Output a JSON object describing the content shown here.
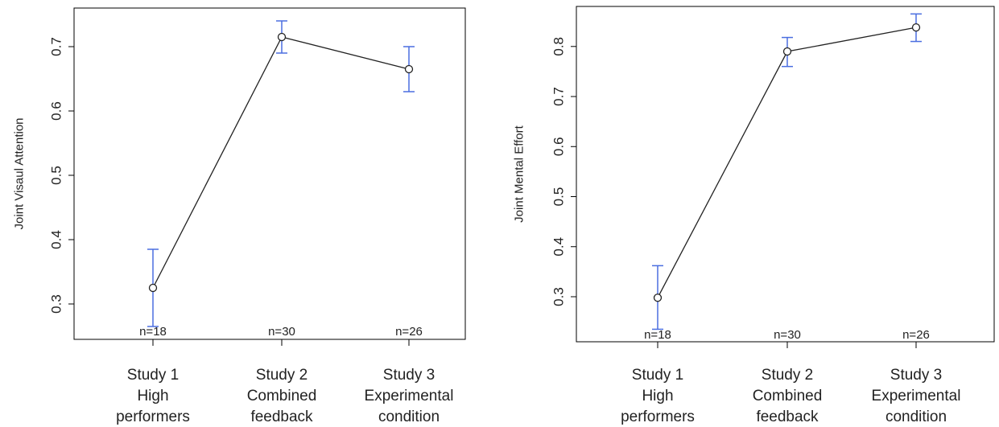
{
  "colors": {
    "line": "#222222",
    "errorbar": "#4a6ee0",
    "axis": "#000000"
  },
  "chart_data": [
    {
      "type": "line",
      "ylabel": "Joint Visaul Attention",
      "categories": [
        [
          "Study 1",
          "High",
          "performers"
        ],
        [
          "Study 2",
          "Combined",
          "feedback"
        ],
        [
          "Study 3",
          "Experimental",
          "condition"
        ]
      ],
      "values": [
        0.325,
        0.715,
        0.665
      ],
      "error_low": [
        0.265,
        0.69,
        0.63
      ],
      "error_high": [
        0.385,
        0.74,
        0.7
      ],
      "n_labels": [
        "n=18",
        "n=30",
        "n=26"
      ],
      "ylim": [
        0.245,
        0.76
      ],
      "yticks": [
        0.3,
        0.4,
        0.5,
        0.6,
        0.7
      ],
      "ytick_labels": [
        "0.3",
        "0.4",
        "0.5",
        "0.6",
        "0.7"
      ],
      "grid": false,
      "legend": "none"
    },
    {
      "type": "line",
      "ylabel": "Joint Mental Effort",
      "categories": [
        [
          "Study 1",
          "High",
          "performers"
        ],
        [
          "Study 2",
          "Combined",
          "feedback"
        ],
        [
          "Study 3",
          "Experimental",
          "condition"
        ]
      ],
      "values": [
        0.298,
        0.79,
        0.838
      ],
      "error_low": [
        0.235,
        0.76,
        0.81
      ],
      "error_high": [
        0.362,
        0.818,
        0.865
      ],
      "n_labels": [
        "n=18",
        "n=30",
        "n=26"
      ],
      "ylim": [
        0.21,
        0.88
      ],
      "yticks": [
        0.3,
        0.4,
        0.5,
        0.6,
        0.7,
        0.8
      ],
      "ytick_labels": [
        "0.3",
        "0.4",
        "0.5",
        "0.6",
        "0.7",
        "0.8"
      ],
      "grid": false,
      "legend": "none"
    }
  ]
}
